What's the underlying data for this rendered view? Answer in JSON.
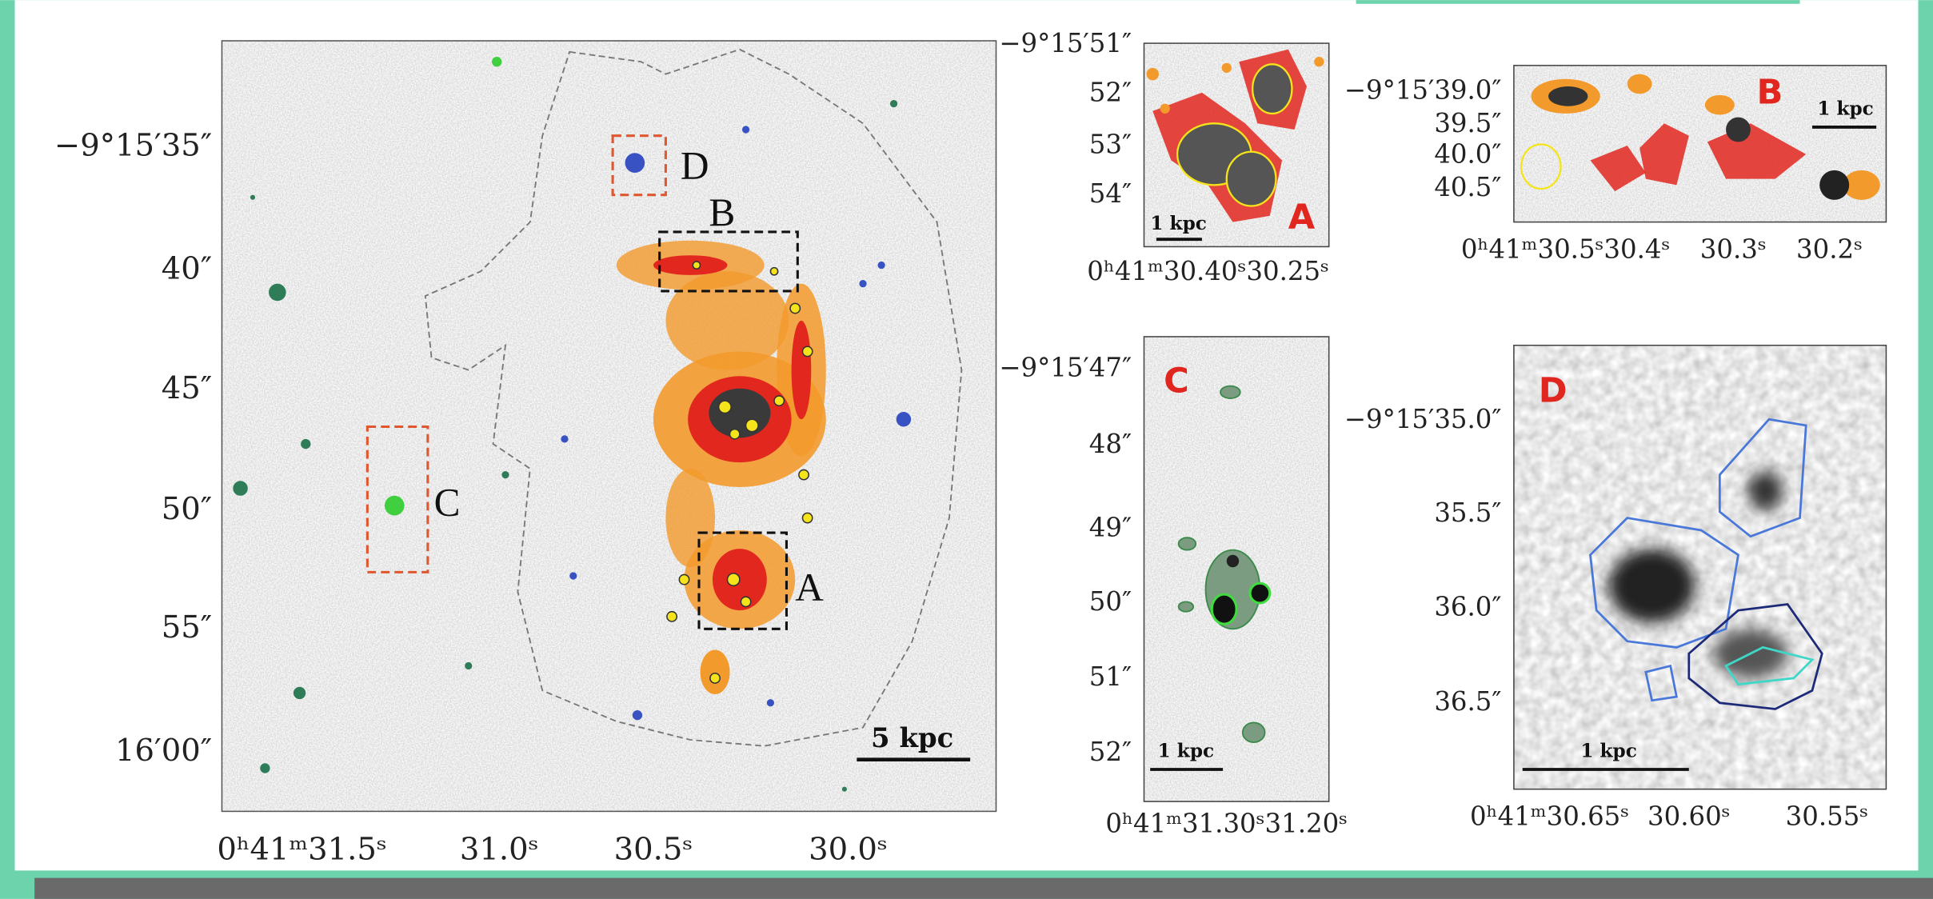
{
  "main": {
    "y_labels": [
      "−9°15′35″",
      "40″",
      "45″",
      "50″",
      "55″",
      "16′00″"
    ],
    "x_labels": [
      "0ʰ41ᵐ31.5ˢ",
      "31.0ˢ",
      "30.5ˢ",
      "30.0ˢ"
    ],
    "regions": [
      "D",
      "B",
      "A",
      "C"
    ],
    "scale": "5 kpc"
  },
  "insets": [
    {
      "letter": "A",
      "y_labels": [
        "−9°15′51″",
        "52″",
        "53″",
        "54″"
      ],
      "x_labels": [
        "0ʰ41ᵐ30.40ˢ30.25ˢ"
      ],
      "scale": "1 kpc"
    },
    {
      "letter": "B",
      "y_labels": [
        "−9°15′39.0″",
        "39.5″",
        "40.0″",
        "40.5″"
      ],
      "x_labels": [
        "0ʰ41ᵐ30.5ˢ30.4ˢ",
        "30.3ˢ",
        "30.2ˢ"
      ],
      "scale": "1 kpc"
    },
    {
      "letter": "C",
      "y_labels": [
        "−9°15′47″",
        "48″",
        "49″",
        "50″",
        "51″",
        "52″"
      ],
      "x_labels": [
        "0ʰ41ᵐ31.30ˢ31.20ˢ"
      ],
      "scale": "1 kpc"
    },
    {
      "letter": "D",
      "y_labels": [
        "−9°15′35.0″",
        "35.5″",
        "36.0″",
        "36.5″"
      ],
      "x_labels": [
        "0ʰ41ᵐ30.65ˢ",
        "30.60ˢ",
        "30.55ˢ"
      ],
      "scale": "1 kpc"
    }
  ]
}
